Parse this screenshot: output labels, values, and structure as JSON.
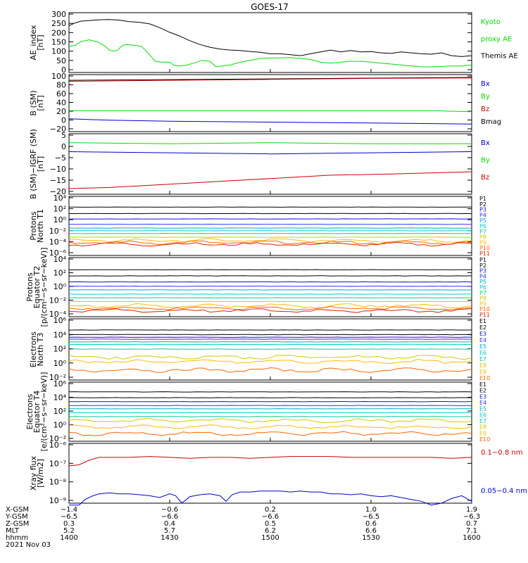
{
  "title": "GOES-17",
  "colors": {
    "black": "#000000",
    "green": "#00dd00",
    "blue": "#0000cc",
    "red": "#cc0000",
    "p_series": [
      "#000000",
      "#000000",
      "#1111cc",
      "#3333ff",
      "#00aacc",
      "#00cccc",
      "#00cc99",
      "#cccc00",
      "#ffbb00",
      "#ff6600",
      "#dd2200",
      "#aa0000"
    ]
  },
  "chart_data": [
    {
      "type": "line",
      "ylabel": [
        "AE_index",
        "[nT]"
      ],
      "yticks": [
        "300",
        "250",
        "200",
        "150",
        "100",
        "50",
        "0"
      ],
      "ylim": [
        0,
        320
      ],
      "legend": [
        {
          "label": "Kyoto",
          "color": "#00dd00"
        },
        {
          "label": "proxy AE",
          "color": "#00dd00"
        },
        {
          "label": "Themis AE",
          "color": "#000000"
        }
      ],
      "series": [
        {
          "name": "Themis AE",
          "color": "#000000",
          "x": [
            1400,
            1403,
            1406,
            1410,
            1415,
            1420,
            1425,
            1430,
            1435,
            1440,
            1445,
            1450,
            1455,
            1460,
            1465,
            1470,
            1475,
            1480,
            1485,
            1490,
            1495,
            1500,
            1505,
            1510,
            1515,
            1520,
            1525,
            1530,
            1535,
            1540,
            1545,
            1550,
            1555,
            1560,
            1565,
            1570,
            1575,
            1580,
            1585,
            1590,
            1595,
            1600
          ],
          "values": [
            250,
            265,
            275,
            278,
            282,
            283,
            280,
            272,
            268,
            260,
            240,
            215,
            195,
            170,
            150,
            135,
            125,
            120,
            118,
            112,
            108,
            100,
            100,
            95,
            90,
            100,
            110,
            120,
            110,
            118,
            110,
            112,
            105,
            102,
            110,
            105,
            100,
            98,
            105,
            90,
            85,
            90
          ]
        },
        {
          "name": "Kyoto proxy AE",
          "color": "#00dd00",
          "x": [
            1400,
            1403,
            1406,
            1410,
            1415,
            1418,
            1420,
            1422,
            1424,
            1426,
            1428,
            1430,
            1433,
            1436,
            1440,
            1443,
            1446,
            1450,
            1452,
            1455,
            1458,
            1462,
            1466,
            1470,
            1473,
            1476,
            1480,
            1485,
            1490,
            1495,
            1500,
            1505,
            1510,
            1515,
            1520,
            1525,
            1530,
            1535,
            1540,
            1545,
            1550,
            1555,
            1560,
            1565,
            1570,
            1575,
            1580,
            1585,
            1590,
            1595,
            1600
          ],
          "values": [
            140,
            145,
            165,
            175,
            160,
            140,
            120,
            115,
            118,
            140,
            150,
            148,
            145,
            140,
            95,
            60,
            55,
            55,
            40,
            35,
            38,
            50,
            65,
            60,
            30,
            35,
            40,
            55,
            65,
            75,
            78,
            78,
            80,
            75,
            70,
            55,
            50,
            55,
            60,
            60,
            55,
            50,
            45,
            40,
            35,
            30,
            30,
            32,
            35,
            35,
            40
          ]
        }
      ]
    },
    {
      "type": "line",
      "ylabel": [
        "B (SM)",
        "[nT]"
      ],
      "yticks": [
        "100",
        "80",
        "60",
        "40",
        "20",
        "0",
        "−20"
      ],
      "ylim": [
        -20,
        100
      ],
      "legend": [
        {
          "label": "Bx",
          "color": "#0000cc"
        },
        {
          "label": "By",
          "color": "#00dd00"
        },
        {
          "label": "Bz",
          "color": "#cc0000"
        },
        {
          "label": "Bmag",
          "color": "#000000"
        }
      ],
      "series": [
        {
          "name": "Bmag",
          "color": "#000000",
          "x": [
            1400,
            1600
          ],
          "values": [
            88,
            94
          ]
        },
        {
          "name": "Bz",
          "color": "#cc0000",
          "x": [
            1400,
            1450,
            1500,
            1550,
            1600
          ],
          "values": [
            86,
            88,
            90,
            92,
            93
          ]
        },
        {
          "name": "By",
          "color": "#00dd00",
          "x": [
            1400,
            1500,
            1580,
            1600
          ],
          "values": [
            24,
            24,
            24,
            22
          ]
        },
        {
          "name": "Bx",
          "color": "#0000cc",
          "x": [
            1400,
            1420,
            1450,
            1500,
            1550,
            1600
          ],
          "values": [
            7,
            4,
            2,
            0,
            -2,
            -4
          ]
        }
      ]
    },
    {
      "type": "line",
      "ylabel": [
        "B (SM)−IGRF (SM)",
        "[nT]"
      ],
      "yticks": [
        "5",
        "0",
        "−5",
        "−10",
        "−15",
        "−20"
      ],
      "ylim": [
        -20,
        7
      ],
      "legend": [
        {
          "label": "Bx",
          "color": "#0000cc"
        },
        {
          "label": "By",
          "color": "#00dd00"
        },
        {
          "label": "Bz",
          "color": "#cc0000"
        }
      ],
      "series": [
        {
          "name": "By",
          "color": "#00dd00",
          "x": [
            1400,
            1450,
            1500,
            1550,
            1600
          ],
          "values": [
            3,
            2.5,
            3,
            2.5,
            2.5
          ]
        },
        {
          "name": "Bx",
          "color": "#0000cc",
          "x": [
            1400,
            1450,
            1500,
            1550,
            1600
          ],
          "values": [
            -1,
            -1.5,
            -2,
            -1.5,
            -1
          ]
        },
        {
          "name": "Bz",
          "color": "#cc0000",
          "x": [
            1400,
            1420,
            1450,
            1480,
            1500,
            1530,
            1560,
            1600
          ],
          "values": [
            -17.5,
            -17,
            -15.5,
            -14,
            -13,
            -11.5,
            -11,
            -10
          ]
        }
      ]
    },
    {
      "type": "line",
      "yscale": "log",
      "ylabel": [
        "Protons",
        "North T1"
      ],
      "yticks": [
        "10⁴",
        "10²",
        "10⁰",
        "10⁻²",
        "10⁻⁴",
        "10⁻⁶"
      ],
      "ylim": [
        -6.5,
        4.5
      ],
      "legend": [
        "P1",
        "P2",
        "P3",
        "P4",
        "P5",
        "P6",
        "P7",
        "P8",
        "P9",
        "P10",
        "P11"
      ],
      "log_levels": [
        2.5,
        1.3,
        0.3,
        -0.7,
        -1.4,
        -1.9,
        -2.4,
        -3.1,
        -3.7,
        -4.1,
        -4.4
      ]
    },
    {
      "type": "line",
      "yscale": "log",
      "ylabel": [
        "Protons",
        "Equator T2",
        "[p/(cm²−s−sr−keV)]"
      ],
      "yticks": [
        "10⁴",
        "10²",
        "10⁰",
        "10⁻²",
        "10⁻⁴"
      ],
      "ylim": [
        -5.2,
        4.5
      ],
      "legend": [
        "P1",
        "P2",
        "P3",
        "P4",
        "P5",
        "P6",
        "P7",
        "P8",
        "P9",
        "P10",
        "P11"
      ],
      "log_levels": [
        2.5,
        1.5,
        0.5,
        -0.2,
        -0.8,
        -1.5,
        -2.1,
        -2.7,
        -3.4,
        -3.8,
        -4.2
      ]
    },
    {
      "type": "line",
      "yscale": "log",
      "ylabel": [
        "Electrons",
        "North T3"
      ],
      "yticks": [
        "10⁶",
        "10⁴",
        "10²",
        "10⁰",
        "10⁻²"
      ],
      "ylim": [
        -3,
        6.3
      ],
      "legend": [
        "E1",
        "E2",
        "E3",
        "E4",
        "E5",
        "E6",
        "E7",
        "E8",
        "E9",
        "E10"
      ],
      "log_levels": [
        4.6,
        3.9,
        3.5,
        3.2,
        2.8,
        2.4,
        1.7,
        0.5,
        -0.2,
        -1.5
      ]
    },
    {
      "type": "line",
      "yscale": "log",
      "ylabel": [
        "Electrons",
        "Equator T4",
        "[e/(cm²−s−sr−keV)]"
      ],
      "yticks": [
        "10⁶",
        "10⁴",
        "10²",
        "10⁰",
        "10⁻²"
      ],
      "ylim": [
        -2.8,
        6.3
      ],
      "legend": [
        "E1",
        "E2",
        "E3",
        "E4",
        "E5",
        "E6",
        "E7",
        "E8",
        "E9",
        "E10"
      ],
      "log_levels": [
        4.8,
        3.9,
        3.3,
        2.7,
        2.2,
        1.6,
        1.0,
        0.4,
        -0.6,
        -1.6
      ]
    },
    {
      "type": "line",
      "yscale": "log",
      "ylabel": [
        "Xray flux",
        "[W/m2]"
      ],
      "yticks": [
        "10⁻⁶",
        "10⁻⁷",
        "10⁻⁸",
        "10⁻⁹"
      ],
      "ylim": [
        -9.2,
        -6
      ],
      "legend": [
        {
          "label": "0.1−0.8 nm",
          "color": "#cc0000"
        },
        {
          "label": "0.05−0.4 nm",
          "color": "#0000cc"
        }
      ],
      "series": [
        {
          "name": "0.1−0.8 nm",
          "color": "#cc0000",
          "x": [
            1400,
            1405,
            1410,
            1415,
            1420,
            1430,
            1440,
            1450,
            1460,
            1470,
            1480,
            1490,
            1500,
            1510,
            1520,
            1530,
            1540,
            1550,
            1560,
            1570,
            1580,
            1590,
            1600
          ],
          "values": [
            -7.2,
            -7.15,
            -6.9,
            -6.75,
            -6.75,
            -6.75,
            -6.7,
            -6.75,
            -6.8,
            -6.75,
            -6.75,
            -6.8,
            -6.75,
            -6.7,
            -6.7,
            -6.7,
            -6.75,
            -6.75,
            -6.75,
            -6.75,
            -6.75,
            -6.8,
            -6.75
          ]
        },
        {
          "name": "0.05−0.4 nm",
          "color": "#0000cc",
          "x": [
            1400,
            1405,
            1408,
            1412,
            1415,
            1420,
            1425,
            1430,
            1435,
            1440,
            1445,
            1450,
            1453,
            1456,
            1460,
            1465,
            1470,
            1475,
            1478,
            1481,
            1485,
            1490,
            1495,
            1500,
            1505,
            1510,
            1515,
            1520,
            1525,
            1530,
            1535,
            1540,
            1545,
            1550,
            1555,
            1560,
            1565,
            1570,
            1575,
            1580,
            1585,
            1590,
            1595,
            1600
          ],
          "values": [
            -9.3,
            -9.3,
            -9.0,
            -8.8,
            -8.7,
            -8.65,
            -8.7,
            -8.7,
            -8.75,
            -8.8,
            -8.9,
            -8.7,
            -8.8,
            -9.2,
            -8.85,
            -8.75,
            -8.7,
            -8.8,
            -9.1,
            -8.75,
            -8.6,
            -8.6,
            -8.55,
            -8.55,
            -8.55,
            -8.6,
            -8.55,
            -8.6,
            -8.6,
            -8.7,
            -8.7,
            -8.75,
            -8.7,
            -8.8,
            -8.85,
            -8.8,
            -8.9,
            -9.0,
            -9.1,
            -9.3,
            -9.2,
            -8.95,
            -8.8,
            -9.1
          ]
        }
      ]
    }
  ],
  "xaxis": {
    "rows": [
      {
        "label": "X-GSM",
        "values": [
          "−1.4",
          "−0.6",
          "0.2",
          "1.0",
          "1.9"
        ]
      },
      {
        "label": "Y-GSM",
        "values": [
          "−6.5",
          "−6.6",
          "−6.6",
          "−6.5",
          "−6.3"
        ]
      },
      {
        "label": "Z-GSM",
        "values": [
          "0.3",
          "0.4",
          "0.5",
          "0.6",
          "0.7"
        ]
      },
      {
        "label": "MLT",
        "values": [
          "5.2",
          "5.7",
          "6.2",
          "6.6",
          "7.1"
        ]
      },
      {
        "label": "hhmm",
        "values": [
          "1400",
          "1430",
          "1500",
          "1530",
          "1600"
        ]
      }
    ],
    "date": "2021 Nov 03",
    "xlim": [
      1400,
      1600
    ]
  }
}
